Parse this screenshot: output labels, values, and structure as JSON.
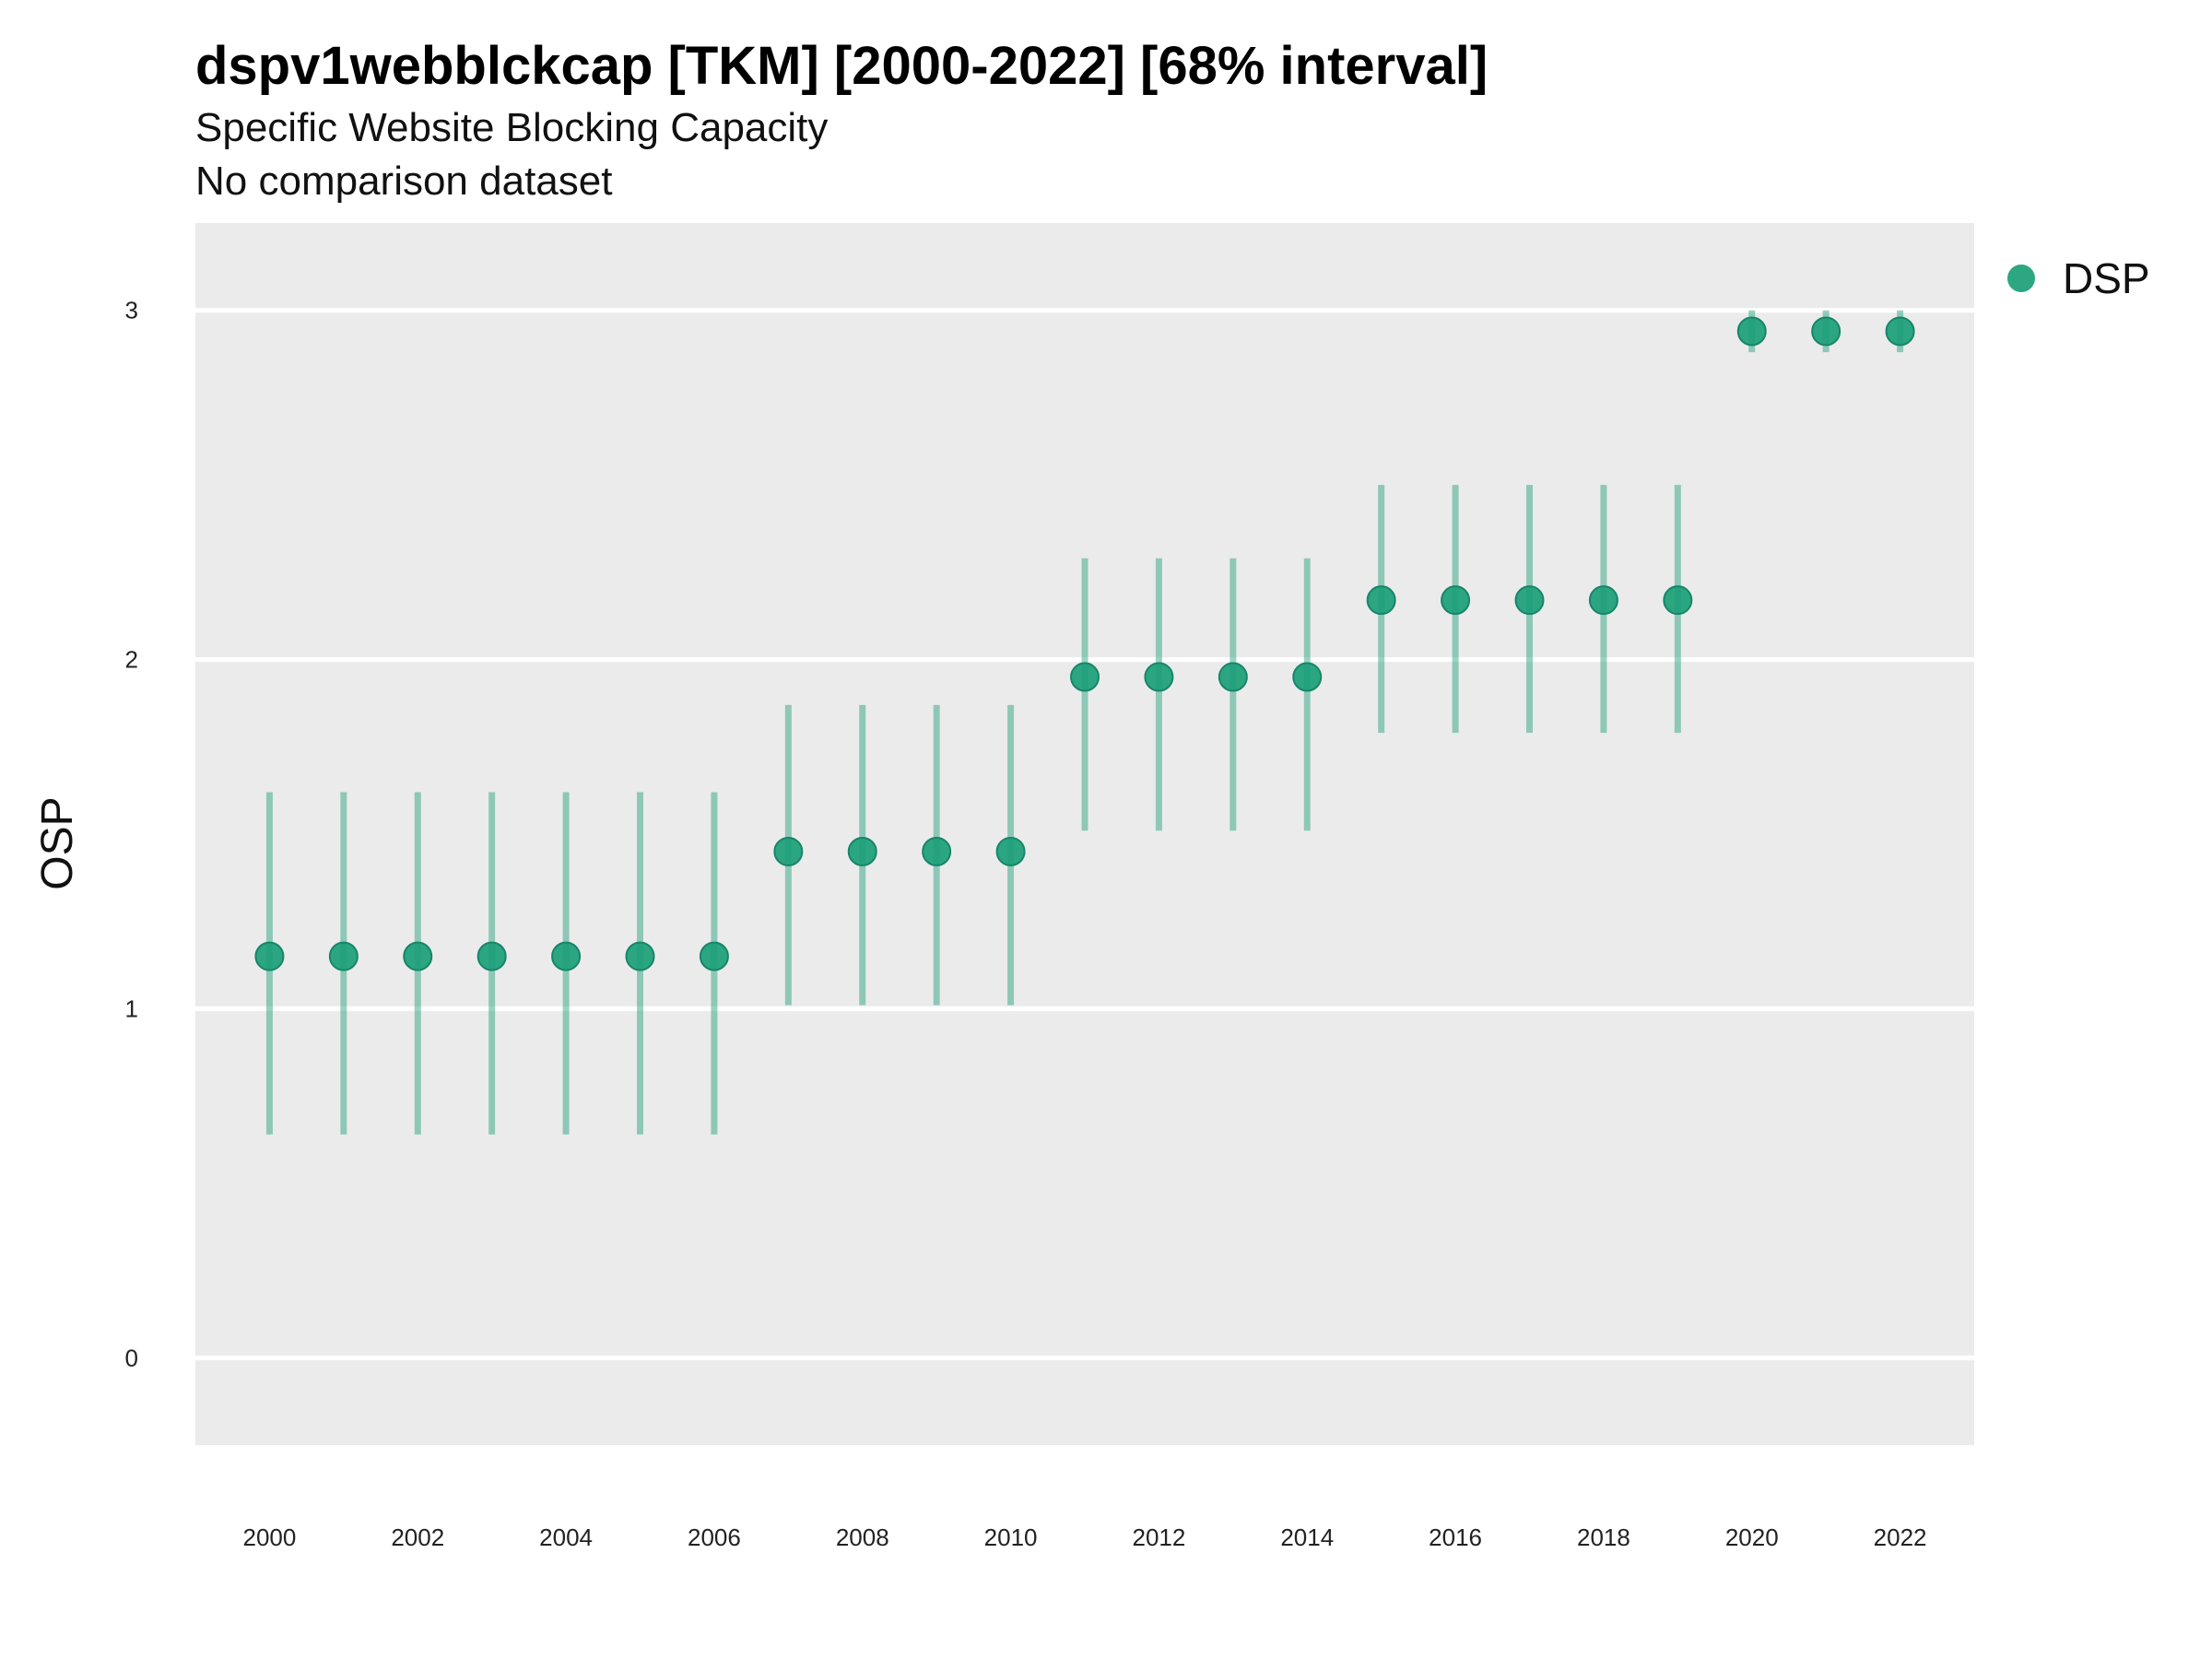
{
  "chart_data": {
    "type": "scatter",
    "title": "dspv1webblckcap [TKM] [2000-2022] [68% interval]",
    "subtitle": "Specific Website Blocking Capacity",
    "note": "No comparison dataset",
    "xlabel": "",
    "ylabel": "OSP",
    "x_ticks": [
      "2000",
      "2002",
      "2004",
      "2006",
      "2008",
      "2010",
      "2012",
      "2014",
      "2016",
      "2018",
      "2020",
      "2022"
    ],
    "y_ticks": [
      "0",
      "1",
      "2",
      "3"
    ],
    "xlim": [
      1999,
      2023
    ],
    "ylim": [
      -0.25,
      3.25
    ],
    "grid": true,
    "legend_position": "top-right",
    "series": [
      {
        "name": "DSP",
        "color": "#1B9E77",
        "x": [
          2000,
          2001,
          2002,
          2003,
          2004,
          2005,
          2006,
          2007,
          2008,
          2009,
          2010,
          2011,
          2012,
          2013,
          2014,
          2015,
          2016,
          2017,
          2018,
          2019,
          2020,
          2021,
          2022
        ],
        "values": [
          1.15,
          1.15,
          1.15,
          1.15,
          1.15,
          1.15,
          1.15,
          1.45,
          1.45,
          1.45,
          1.45,
          1.95,
          1.95,
          1.95,
          1.95,
          2.17,
          2.17,
          2.17,
          2.17,
          2.17,
          2.94,
          2.94,
          2.94
        ],
        "lower": [
          0.64,
          0.64,
          0.64,
          0.64,
          0.64,
          0.64,
          0.64,
          1.01,
          1.01,
          1.01,
          1.01,
          1.51,
          1.51,
          1.51,
          1.51,
          1.79,
          1.79,
          1.79,
          1.79,
          1.79,
          2.88,
          2.88,
          2.88
        ],
        "upper": [
          1.62,
          1.62,
          1.62,
          1.62,
          1.62,
          1.62,
          1.62,
          1.87,
          1.87,
          1.87,
          1.87,
          2.29,
          2.29,
          2.29,
          2.29,
          2.5,
          2.5,
          2.5,
          2.5,
          2.5,
          3.0,
          3.0,
          3.0
        ]
      }
    ]
  }
}
